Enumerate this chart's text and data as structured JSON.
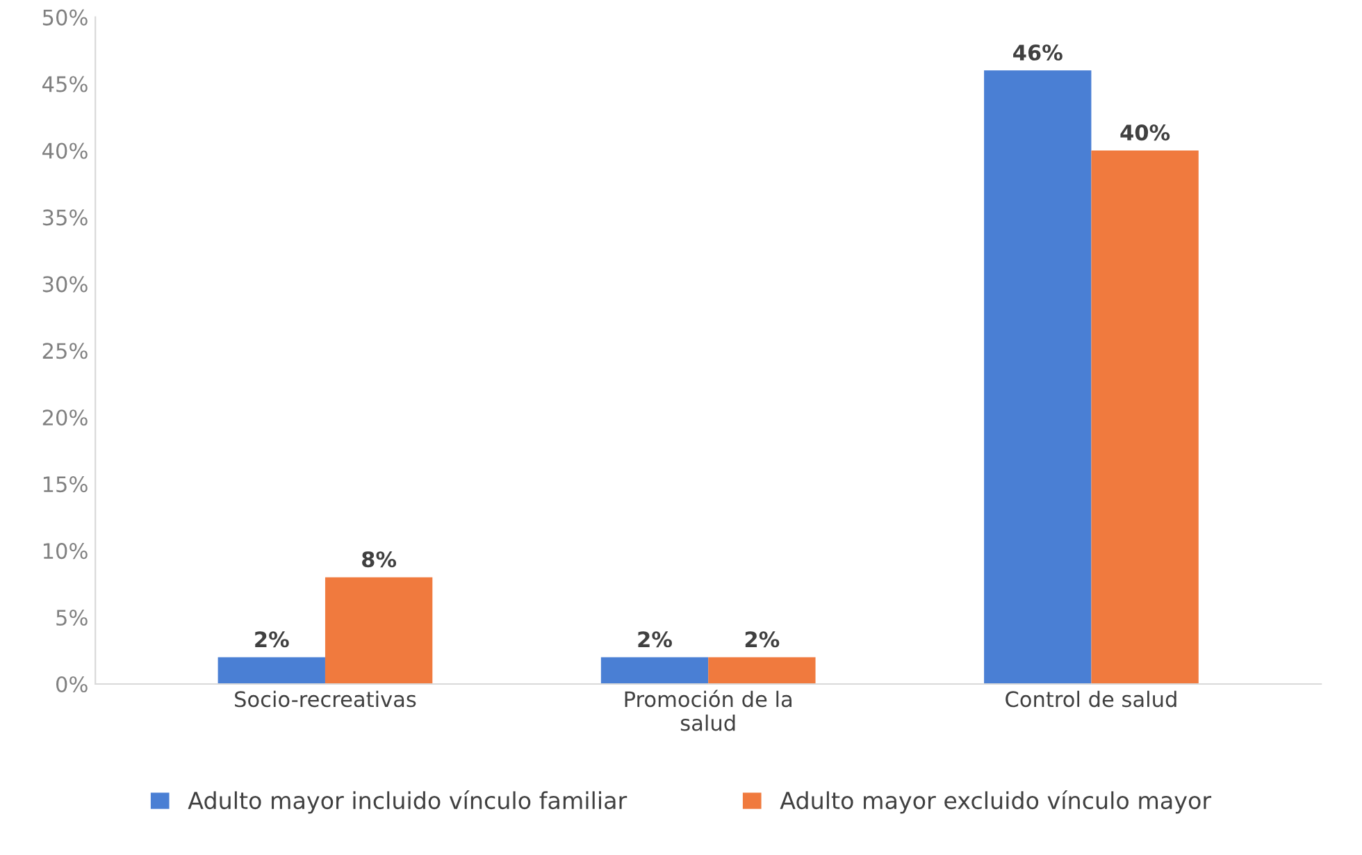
{
  "chart_data": {
    "type": "bar",
    "categories": [
      "Socio-recreativas",
      "Promoción de la\nsalud",
      "Control de salud"
    ],
    "series": [
      {
        "name": "Adulto mayor incluido vínculo familiar",
        "color": "#4a7fd4",
        "values": [
          2,
          2,
          46
        ],
        "value_labels": [
          "2%",
          "2%",
          "46%"
        ]
      },
      {
        "name": "Adulto mayor excluido vínculo mayor",
        "color": "#f07a3e",
        "values": [
          8,
          2,
          40
        ],
        "value_labels": [
          "8%",
          "2%",
          "40%"
        ]
      }
    ],
    "ylim": [
      0,
      50
    ],
    "yticks": [
      {
        "value": 0,
        "label": "0%"
      },
      {
        "value": 5,
        "label": "5%"
      },
      {
        "value": 10,
        "label": "10%"
      },
      {
        "value": 15,
        "label": "15%"
      },
      {
        "value": 20,
        "label": "20%"
      },
      {
        "value": 25,
        "label": "25%"
      },
      {
        "value": 30,
        "label": "30%"
      },
      {
        "value": 35,
        "label": "35%"
      },
      {
        "value": 40,
        "label": "40%"
      },
      {
        "value": 45,
        "label": "45%"
      },
      {
        "value": 50,
        "label": "50%"
      }
    ],
    "grid": false,
    "legend": "bottom"
  }
}
